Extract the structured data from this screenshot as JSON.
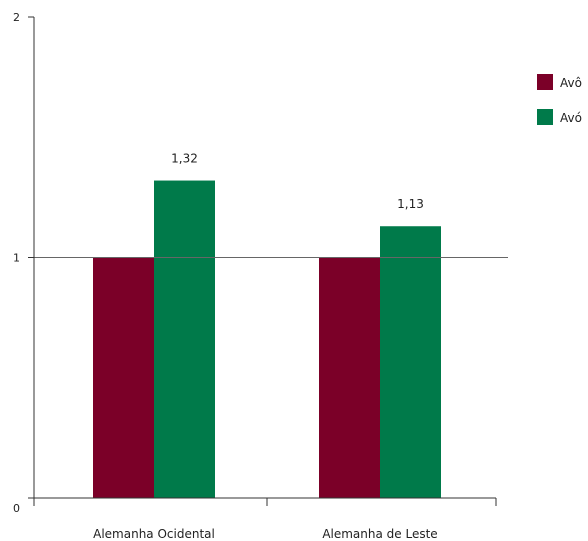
{
  "chart_data": {
    "type": "bar",
    "categories": [
      "Alemanha Ocidental",
      "Alemanha de Leste"
    ],
    "series": [
      {
        "name": "Avô",
        "values": [
          1,
          1
        ],
        "color": "#7b0028",
        "data_labels": [
          "",
          ""
        ]
      },
      {
        "name": "Avó",
        "values": [
          1.32,
          1.13
        ],
        "color": "#007a4a",
        "data_labels": [
          "1,32",
          "1,13"
        ]
      }
    ],
    "ylim": [
      0,
      2
    ],
    "yticks": [
      {
        "value": 0,
        "label": "0"
      },
      {
        "value": 1,
        "label": "1"
      },
      {
        "value": 2,
        "label": "2"
      }
    ],
    "reference_line": 1,
    "grid": false,
    "legend": "top-right",
    "title": "",
    "xlabel": "",
    "ylabel": ""
  }
}
